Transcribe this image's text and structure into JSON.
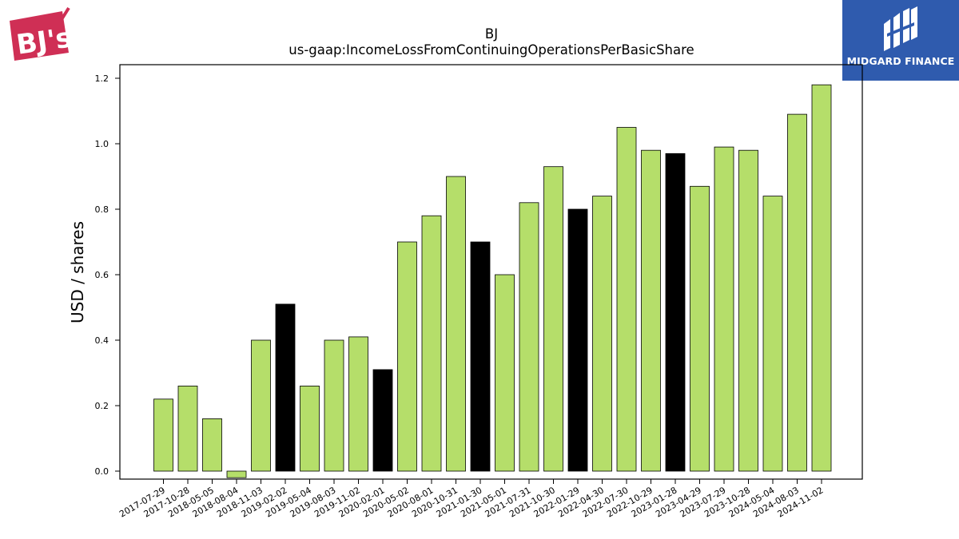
{
  "chart_data": {
    "type": "bar",
    "title": "BJ",
    "subtitle": "us-gaap:IncomeLossFromContinuingOperationsPerBasicShare",
    "xlabel": "",
    "ylabel": "USD / shares",
    "ylim": [
      -0.025,
      1.24
    ],
    "yticks": [
      "0.0",
      "0.2",
      "0.4",
      "0.6",
      "0.8",
      "1.0",
      "1.2"
    ],
    "grid": false,
    "categories": [
      "2017-07-29",
      "2017-10-28",
      "2018-05-05",
      "2018-08-04",
      "2018-11-03",
      "2019-02-02",
      "2019-05-04",
      "2019-08-03",
      "2019-11-02",
      "2020-02-01",
      "2020-05-02",
      "2020-08-01",
      "2020-10-31",
      "2021-01-30",
      "2021-05-01",
      "2021-07-31",
      "2021-10-30",
      "2022-01-29",
      "2022-04-30",
      "2022-07-30",
      "2022-10-29",
      "2023-01-28",
      "2023-04-29",
      "2023-07-29",
      "2023-10-28",
      "2024-05-04",
      "2024-08-03",
      "2024-11-02"
    ],
    "values": [
      0.22,
      0.26,
      0.16,
      -0.02,
      0.4,
      0.51,
      0.26,
      0.4,
      0.41,
      0.31,
      0.7,
      0.78,
      0.9,
      0.7,
      0.6,
      0.82,
      0.93,
      0.8,
      0.84,
      1.05,
      0.98,
      0.97,
      0.87,
      0.99,
      0.98,
      0.84,
      1.09,
      1.18
    ],
    "highlighted": [
      false,
      false,
      false,
      false,
      false,
      true,
      false,
      false,
      false,
      true,
      false,
      false,
      false,
      true,
      false,
      false,
      false,
      true,
      false,
      false,
      false,
      true,
      false,
      false,
      false,
      false,
      false,
      false
    ],
    "colors": {
      "bar": "#b5de6a",
      "highlight": "#000000",
      "edge": "#000000"
    }
  },
  "logos": {
    "left_text": "BJ's",
    "right_text": "MIDGARD FINANCE"
  }
}
